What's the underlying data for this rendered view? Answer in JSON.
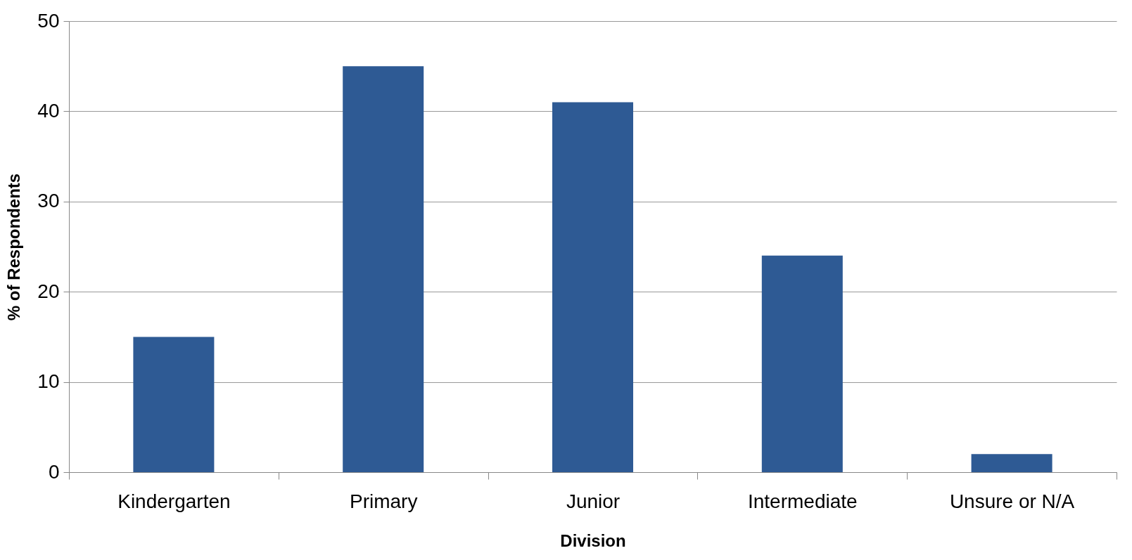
{
  "chart_data": {
    "type": "bar",
    "xlabel": "Division",
    "ylabel": "% of Respondents",
    "categories": [
      "Kindergarten",
      "Primary",
      "Junior",
      "Intermediate",
      "Unsure or N/A"
    ],
    "values": [
      15,
      45,
      41,
      24,
      2
    ],
    "color": "#2e5a94",
    "ylim": [
      0,
      50
    ],
    "yticks": [
      0,
      10,
      20,
      30,
      40,
      50
    ],
    "grid": "y"
  }
}
